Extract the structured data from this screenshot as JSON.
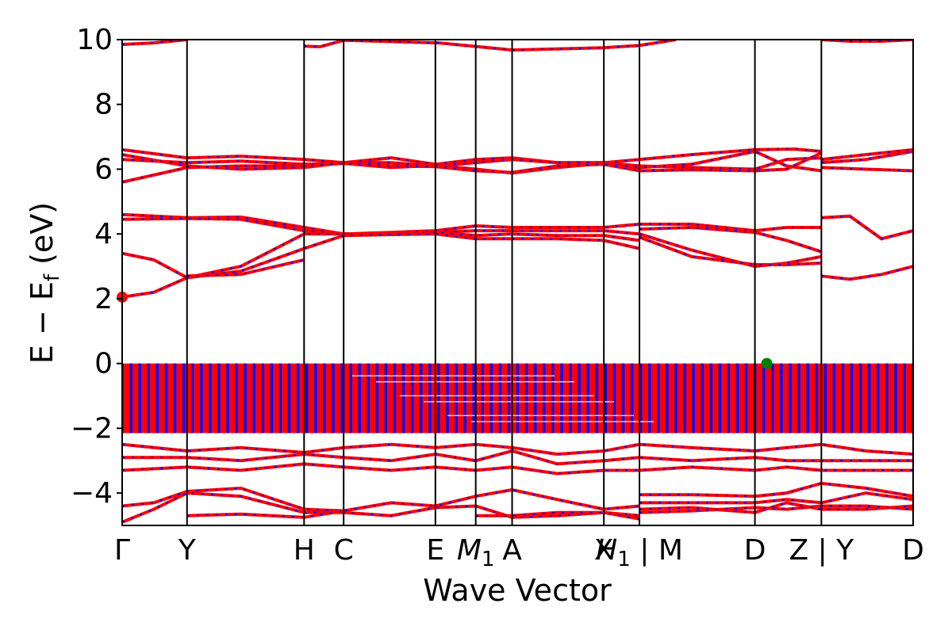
{
  "chart_data": {
    "type": "line",
    "title": "",
    "xlabel": "Wave Vector",
    "ylabel": "E − E",
    "ylabel_sub": "f",
    "ylabel_unit": " (eV)",
    "ylim": [
      -5,
      10
    ],
    "yticks": [
      -4,
      -2,
      0,
      2,
      4,
      6,
      8,
      10
    ],
    "ytick_labels": [
      "−4",
      "−2",
      "0",
      "2",
      "4",
      "6",
      "8",
      "10"
    ],
    "xlim": [
      0,
      1
    ],
    "kpoints": [
      {
        "x": 0.0,
        "label": "Γ"
      },
      {
        "x": 0.082,
        "label": "Y"
      },
      {
        "x": 0.23,
        "label": "H"
      },
      {
        "x": 0.28,
        "label": "C"
      },
      {
        "x": 0.396,
        "label": "E"
      },
      {
        "x": 0.447,
        "label": "M",
        "sub": "1"
      },
      {
        "x": 0.493,
        "label": "A"
      },
      {
        "x": 0.609,
        "label": "X"
      },
      {
        "x": 0.654,
        "label": "H",
        "sub": "1",
        "suffix": " | M"
      },
      {
        "x": 0.8,
        "label": "D"
      },
      {
        "x": 0.884,
        "label": "Z | Y"
      },
      {
        "x": 1.0,
        "label": "D"
      }
    ],
    "series_colors": {
      "spin_up": "#ff0000",
      "spin_down": "#0000ff"
    },
    "vbm": {
      "x": 0.815,
      "y": 0.0,
      "color": "#008000"
    },
    "cbm": {
      "x": 0.0,
      "y": 2.05,
      "color": "#ff0000"
    },
    "valence_top": 0.0,
    "valence_bottom": -2.15,
    "bands": [
      [
        [
          0,
          9.85
        ],
        [
          0.04,
          9.9
        ],
        [
          0.082,
          10.0
        ]
      ],
      [
        [
          0.23,
          9.8
        ],
        [
          0.25,
          9.78
        ],
        [
          0.28,
          9.98
        ],
        [
          0.4,
          9.9
        ],
        [
          0.493,
          9.68
        ],
        [
          0.609,
          9.75
        ],
        [
          0.654,
          9.82
        ],
        [
          0.7,
          10.0
        ]
      ],
      [
        [
          0.884,
          10.0
        ],
        [
          0.92,
          9.95
        ],
        [
          0.96,
          9.95
        ],
        [
          1.0,
          10.0
        ]
      ],
      [
        [
          0,
          6.6
        ],
        [
          0.082,
          6.35
        ],
        [
          0.15,
          6.4
        ],
        [
          0.23,
          6.3
        ],
        [
          0.28,
          6.2
        ],
        [
          0.34,
          6.35
        ],
        [
          0.396,
          6.15
        ],
        [
          0.447,
          6.3
        ],
        [
          0.493,
          6.35
        ],
        [
          0.55,
          6.2
        ],
        [
          0.609,
          6.2
        ],
        [
          0.654,
          6.3
        ],
        [
          0.72,
          6.45
        ],
        [
          0.8,
          6.6
        ],
        [
          0.85,
          6.62
        ],
        [
          0.884,
          6.55
        ]
      ],
      [
        [
          0,
          6.45
        ],
        [
          0.082,
          6.1
        ],
        [
          0.15,
          6.0
        ],
        [
          0.23,
          6.05
        ],
        [
          0.28,
          6.2
        ],
        [
          0.34,
          6.2
        ],
        [
          0.396,
          6.1
        ],
        [
          0.447,
          6.2
        ],
        [
          0.493,
          6.3
        ],
        [
          0.55,
          6.2
        ],
        [
          0.609,
          6.2
        ],
        [
          0.654,
          6.1
        ],
        [
          0.72,
          6.05
        ],
        [
          0.8,
          6.0
        ],
        [
          0.84,
          6.3
        ],
        [
          0.884,
          6.35
        ]
      ],
      [
        [
          0,
          6.3
        ],
        [
          0.082,
          6.2
        ],
        [
          0.15,
          6.25
        ],
        [
          0.23,
          6.15
        ],
        [
          0.28,
          6.18
        ],
        [
          0.34,
          6.05
        ],
        [
          0.396,
          6.12
        ],
        [
          0.447,
          6.0
        ],
        [
          0.493,
          5.88
        ],
        [
          0.55,
          6.05
        ],
        [
          0.609,
          6.18
        ],
        [
          0.654,
          6.05
        ],
        [
          0.72,
          6.15
        ],
        [
          0.8,
          6.55
        ],
        [
          0.84,
          6.1
        ],
        [
          0.884,
          5.95
        ]
      ],
      [
        [
          0,
          5.6
        ],
        [
          0.082,
          6.05
        ],
        [
          0.15,
          6.1
        ],
        [
          0.23,
          6.1
        ],
        [
          0.28,
          6.18
        ],
        [
          0.34,
          6.1
        ],
        [
          0.396,
          6.08
        ],
        [
          0.447,
          5.95
        ],
        [
          0.493,
          5.9
        ],
        [
          0.55,
          6.1
        ],
        [
          0.609,
          6.15
        ],
        [
          0.654,
          5.95
        ],
        [
          0.72,
          5.98
        ],
        [
          0.8,
          5.95
        ],
        [
          0.84,
          6.0
        ],
        [
          0.884,
          6.5
        ]
      ],
      [
        [
          0.884,
          6.3
        ],
        [
          0.94,
          6.45
        ],
        [
          1.0,
          6.6
        ]
      ],
      [
        [
          0.884,
          6.2
        ],
        [
          0.94,
          6.3
        ],
        [
          1.0,
          6.55
        ]
      ],
      [
        [
          0.884,
          6.05
        ],
        [
          0.94,
          6.0
        ],
        [
          1.0,
          5.95
        ]
      ],
      [
        [
          0,
          4.6
        ],
        [
          0.082,
          4.5
        ],
        [
          0.15,
          4.52
        ],
        [
          0.23,
          4.2
        ],
        [
          0.28,
          4.0
        ],
        [
          0.34,
          4.05
        ],
        [
          0.396,
          4.1
        ],
        [
          0.447,
          4.25
        ],
        [
          0.493,
          4.2
        ],
        [
          0.55,
          4.2
        ],
        [
          0.609,
          4.2
        ],
        [
          0.654,
          4.3
        ]
      ],
      [
        [
          0,
          4.45
        ],
        [
          0.082,
          4.48
        ],
        [
          0.15,
          4.45
        ],
        [
          0.23,
          4.1
        ],
        [
          0.28,
          4.0
        ],
        [
          0.34,
          4.02
        ],
        [
          0.396,
          4.05
        ],
        [
          0.447,
          4.1
        ],
        [
          0.493,
          4.1
        ],
        [
          0.55,
          4.1
        ],
        [
          0.609,
          4.1
        ],
        [
          0.654,
          4.0
        ]
      ],
      [
        [
          0,
          3.4
        ],
        [
          0.04,
          3.2
        ],
        [
          0.082,
          2.65
        ],
        [
          0.15,
          3.0
        ],
        [
          0.23,
          4.0
        ],
        [
          0.28,
          4.0
        ],
        [
          0.34,
          4.0
        ],
        [
          0.396,
          4.05
        ],
        [
          0.447,
          3.95
        ],
        [
          0.493,
          4.0
        ],
        [
          0.55,
          3.95
        ],
        [
          0.609,
          3.95
        ],
        [
          0.654,
          3.8
        ]
      ],
      [
        [
          0,
          2.05
        ],
        [
          0.04,
          2.2
        ],
        [
          0.082,
          2.65
        ],
        [
          0.15,
          2.85
        ],
        [
          0.23,
          3.55
        ],
        [
          0.28,
          3.95
        ],
        [
          0.34,
          3.98
        ],
        [
          0.396,
          4.0
        ],
        [
          0.447,
          3.85
        ],
        [
          0.493,
          3.85
        ],
        [
          0.55,
          3.85
        ],
        [
          0.609,
          3.8
        ],
        [
          0.654,
          3.55
        ]
      ],
      [
        [
          0.082,
          2.7
        ],
        [
          0.15,
          2.75
        ],
        [
          0.23,
          3.2
        ]
      ],
      [
        [
          0.654,
          4.3
        ],
        [
          0.72,
          4.3
        ],
        [
          0.8,
          4.1
        ],
        [
          0.84,
          4.2
        ],
        [
          0.884,
          4.2
        ]
      ],
      [
        [
          0.654,
          4.15
        ],
        [
          0.72,
          4.2
        ],
        [
          0.8,
          4.05
        ],
        [
          0.84,
          3.8
        ],
        [
          0.884,
          3.45
        ]
      ],
      [
        [
          0.654,
          4.0
        ],
        [
          0.72,
          3.5
        ],
        [
          0.8,
          3.0
        ],
        [
          0.84,
          3.1
        ],
        [
          0.884,
          3.3
        ]
      ],
      [
        [
          0.654,
          3.9
        ],
        [
          0.72,
          3.3
        ],
        [
          0.8,
          3.05
        ],
        [
          0.84,
          3.05
        ],
        [
          0.884,
          3.1
        ]
      ],
      [
        [
          0.884,
          4.5
        ],
        [
          0.92,
          4.55
        ],
        [
          0.96,
          3.85
        ],
        [
          1.0,
          4.1
        ]
      ],
      [
        [
          0.884,
          2.7
        ],
        [
          0.92,
          2.6
        ],
        [
          0.96,
          2.75
        ],
        [
          1.0,
          3.0
        ]
      ],
      [
        [
          0,
          -2.5
        ],
        [
          0.082,
          -2.7
        ],
        [
          0.15,
          -2.6
        ],
        [
          0.23,
          -2.75
        ],
        [
          0.28,
          -2.6
        ],
        [
          0.34,
          -2.5
        ],
        [
          0.396,
          -2.6
        ],
        [
          0.447,
          -2.5
        ],
        [
          0.493,
          -2.6
        ],
        [
          0.55,
          -2.8
        ],
        [
          0.609,
          -2.7
        ],
        [
          0.654,
          -2.5
        ],
        [
          0.72,
          -2.6
        ],
        [
          0.8,
          -2.7
        ],
        [
          0.84,
          -2.6
        ],
        [
          0.884,
          -2.5
        ],
        [
          0.94,
          -2.7
        ],
        [
          1.0,
          -2.8
        ]
      ],
      [
        [
          0,
          -2.9
        ],
        [
          0.082,
          -2.9
        ],
        [
          0.15,
          -3.0
        ],
        [
          0.23,
          -2.8
        ],
        [
          0.28,
          -2.9
        ],
        [
          0.34,
          -3.0
        ],
        [
          0.396,
          -2.8
        ],
        [
          0.447,
          -3.0
        ],
        [
          0.493,
          -2.7
        ],
        [
          0.55,
          -3.1
        ],
        [
          0.609,
          -3.0
        ],
        [
          0.654,
          -2.9
        ],
        [
          0.72,
          -3.0
        ],
        [
          0.8,
          -2.9
        ],
        [
          0.84,
          -3.0
        ],
        [
          0.884,
          -3.0
        ],
        [
          0.94,
          -3.0
        ],
        [
          1.0,
          -3.0
        ]
      ],
      [
        [
          0,
          -3.3
        ],
        [
          0.082,
          -3.2
        ],
        [
          0.15,
          -3.3
        ],
        [
          0.23,
          -3.1
        ],
        [
          0.28,
          -3.2
        ],
        [
          0.34,
          -3.3
        ],
        [
          0.396,
          -3.2
        ],
        [
          0.447,
          -3.3
        ],
        [
          0.493,
          -3.2
        ],
        [
          0.55,
          -3.4
        ],
        [
          0.609,
          -3.3
        ],
        [
          0.654,
          -3.3
        ],
        [
          0.72,
          -3.2
        ],
        [
          0.8,
          -3.3
        ],
        [
          0.84,
          -3.2
        ],
        [
          0.884,
          -3.3
        ],
        [
          0.94,
          -3.3
        ],
        [
          1.0,
          -3.3
        ]
      ],
      [
        [
          0,
          -4.4
        ],
        [
          0.04,
          -4.3
        ],
        [
          0.082,
          -3.95
        ],
        [
          0.15,
          -3.85
        ],
        [
          0.23,
          -4.5
        ],
        [
          0.28,
          -4.55
        ],
        [
          0.34,
          -4.3
        ],
        [
          0.396,
          -4.4
        ],
        [
          0.447,
          -4.1
        ],
        [
          0.493,
          -3.9
        ],
        [
          0.55,
          -4.2
        ],
        [
          0.609,
          -4.5
        ],
        [
          0.654,
          -4.4
        ]
      ],
      [
        [
          0,
          -4.9
        ],
        [
          0.04,
          -4.5
        ],
        [
          0.082,
          -4.0
        ],
        [
          0.15,
          -4.1
        ],
        [
          0.23,
          -4.6
        ],
        [
          0.28,
          -4.6
        ],
        [
          0.34,
          -4.7
        ],
        [
          0.396,
          -4.45
        ],
        [
          0.447,
          -4.4
        ],
        [
          0.493,
          -4.75
        ],
        [
          0.55,
          -4.7
        ],
        [
          0.609,
          -4.6
        ],
        [
          0.654,
          -4.7
        ]
      ],
      [
        [
          0.082,
          -4.7
        ],
        [
          0.15,
          -4.65
        ],
        [
          0.23,
          -4.75
        ],
        [
          0.28,
          -4.55
        ]
      ],
      [
        [
          0.447,
          -4.7
        ],
        [
          0.493,
          -4.7
        ],
        [
          0.55,
          -4.6
        ],
        [
          0.609,
          -4.6
        ],
        [
          0.654,
          -4.8
        ]
      ],
      [
        [
          0.654,
          -4.05
        ],
        [
          0.72,
          -4.05
        ],
        [
          0.8,
          -4.1
        ],
        [
          0.84,
          -4.0
        ],
        [
          0.884,
          -3.7
        ],
        [
          0.94,
          -3.85
        ],
        [
          1.0,
          -4.1
        ]
      ],
      [
        [
          0.654,
          -4.3
        ],
        [
          0.72,
          -4.3
        ],
        [
          0.8,
          -4.3
        ],
        [
          0.84,
          -4.2
        ],
        [
          0.884,
          -4.3
        ],
        [
          0.94,
          -4.0
        ],
        [
          1.0,
          -4.2
        ]
      ],
      [
        [
          0.654,
          -4.5
        ],
        [
          0.72,
          -4.45
        ],
        [
          0.8,
          -4.6
        ],
        [
          0.84,
          -4.3
        ],
        [
          0.884,
          -4.5
        ],
        [
          0.94,
          -4.5
        ],
        [
          1.0,
          -4.4
        ]
      ],
      [
        [
          0.654,
          -4.6
        ],
        [
          0.72,
          -4.55
        ],
        [
          0.8,
          -4.45
        ],
        [
          0.84,
          -4.5
        ],
        [
          0.884,
          -4.4
        ],
        [
          0.94,
          -4.4
        ],
        [
          1.0,
          -4.5
        ]
      ]
    ]
  }
}
